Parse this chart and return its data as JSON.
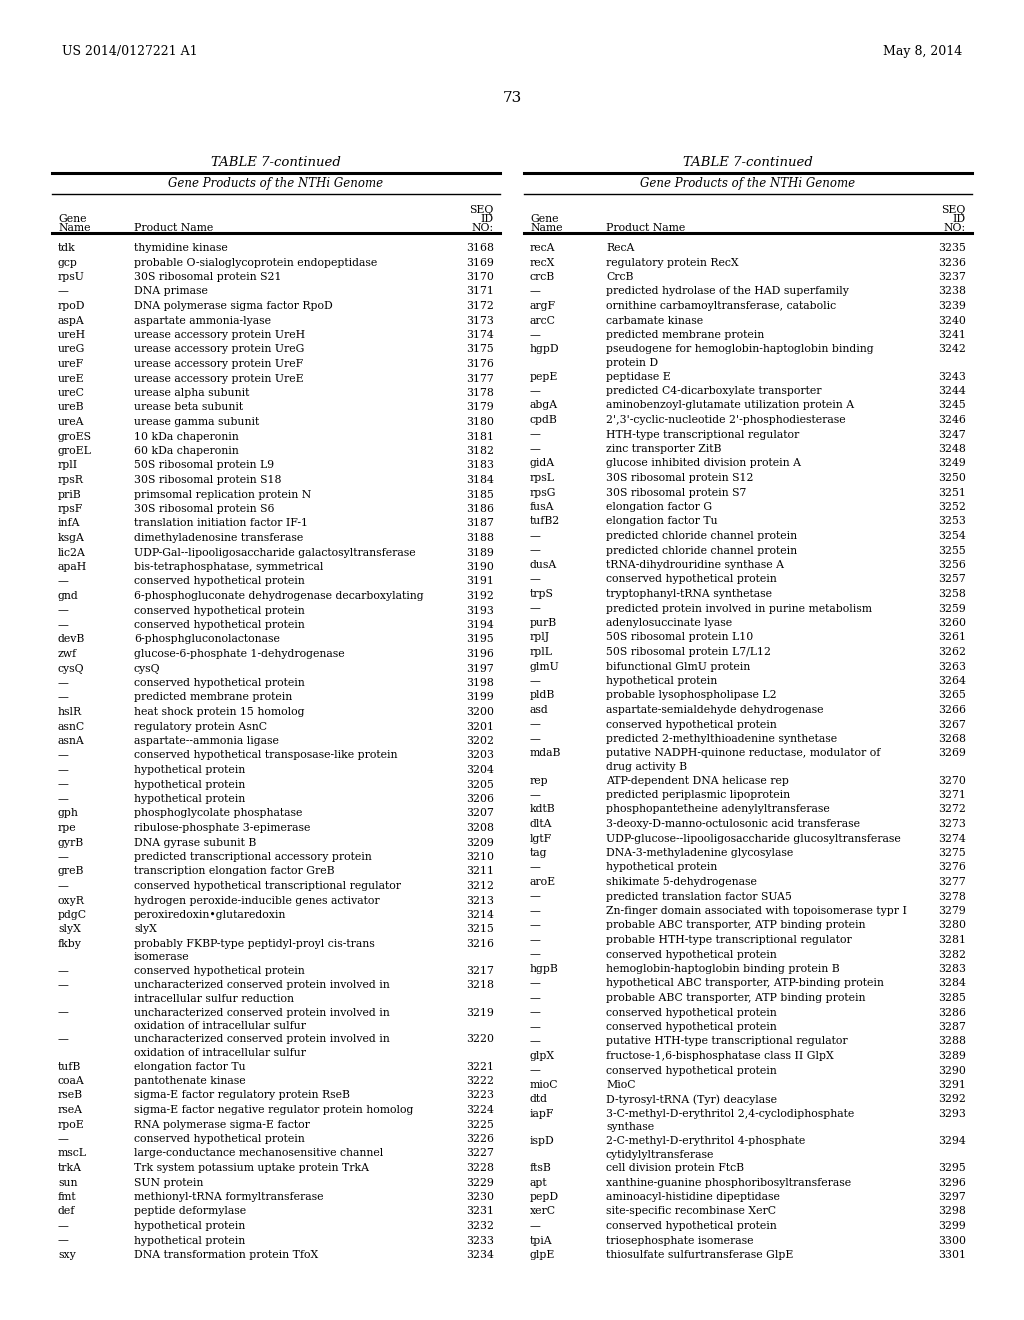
{
  "header_left": "US 2014/0127221 A1",
  "header_right": "May 8, 2014",
  "page_number": "73",
  "table_title": "TABLE 7-continued",
  "table_subtitle": "Gene Products of the NTHi Genome",
  "left_table": [
    [
      "tdk",
      "thymidine kinase",
      "3168"
    ],
    [
      "gcp",
      "probable O-sialoglycoprotein endopeptidase",
      "3169"
    ],
    [
      "rpsU",
      "30S ribosomal protein S21",
      "3170"
    ],
    [
      "—",
      "DNA primase",
      "3171"
    ],
    [
      "rpoD",
      "DNA polymerase sigma factor RpoD",
      "3172"
    ],
    [
      "aspA",
      "aspartate ammonia-lyase",
      "3173"
    ],
    [
      "ureH",
      "urease accessory protein UreH",
      "3174"
    ],
    [
      "ureG",
      "urease accessory protein UreG",
      "3175"
    ],
    [
      "ureF",
      "urease accessory protein UreF",
      "3176"
    ],
    [
      "ureE",
      "urease accessory protein UreE",
      "3177"
    ],
    [
      "ureC",
      "urease alpha subunit",
      "3178"
    ],
    [
      "ureB",
      "urease beta subunit",
      "3179"
    ],
    [
      "ureA",
      "urease gamma subunit",
      "3180"
    ],
    [
      "groES",
      "10 kDa chaperonin",
      "3181"
    ],
    [
      "groEL",
      "60 kDa chaperonin",
      "3182"
    ],
    [
      "rplI",
      "50S ribosomal protein L9",
      "3183"
    ],
    [
      "rpsR",
      "30S ribosomal protein S18",
      "3184"
    ],
    [
      "priB",
      "primsomal replication protein N",
      "3185"
    ],
    [
      "rpsF",
      "30S ribosomal protein S6",
      "3186"
    ],
    [
      "infA",
      "translation initiation factor IF-1",
      "3187"
    ],
    [
      "ksgA",
      "dimethyladenosine transferase",
      "3188"
    ],
    [
      "lic2A",
      "UDP-Gal--lipooligosaccharide galactosyltransferase",
      "3189"
    ],
    [
      "apaH",
      "bis-tetraphosphatase, symmetrical",
      "3190"
    ],
    [
      "—",
      "conserved hypothetical protein",
      "3191"
    ],
    [
      "gnd",
      "6-phosphogluconate dehydrogenase decarboxylating",
      "3192"
    ],
    [
      "—",
      "conserved hypothetical protein",
      "3193"
    ],
    [
      "—",
      "conserved hypothetical protein",
      "3194"
    ],
    [
      "devB",
      "6-phosphgluconolactonase",
      "3195"
    ],
    [
      "zwf",
      "glucose-6-phosphate 1-dehydrogenase",
      "3196"
    ],
    [
      "cysQ",
      "cysQ",
      "3197"
    ],
    [
      "—",
      "conserved hypothetical protein",
      "3198"
    ],
    [
      "—",
      "predicted membrane protein",
      "3199"
    ],
    [
      "hslR",
      "heat shock protein 15 homolog",
      "3200"
    ],
    [
      "asnC",
      "regulatory protein AsnC",
      "3201"
    ],
    [
      "asnA",
      "aspartate--ammonia ligase",
      "3202"
    ],
    [
      "—",
      "conserved hypothetical transposase-like protein",
      "3203"
    ],
    [
      "—",
      "hypothetical protein",
      "3204"
    ],
    [
      "—",
      "hypothetical protein",
      "3205"
    ],
    [
      "—",
      "hypothetical protein",
      "3206"
    ],
    [
      "gph",
      "phosphoglycolate phosphatase",
      "3207"
    ],
    [
      "rpe",
      "ribulose-phosphate 3-epimerase",
      "3208"
    ],
    [
      "gyrB",
      "DNA gyrase subunit B",
      "3209"
    ],
    [
      "—",
      "predicted transcriptional accessory protein",
      "3210"
    ],
    [
      "greB",
      "transcription elongation factor GreB",
      "3211"
    ],
    [
      "—",
      "conserved hypothetical transcriptional regulator",
      "3212"
    ],
    [
      "oxyR",
      "hydrogen peroxide-inducible genes activator",
      "3213"
    ],
    [
      "pdgC",
      "peroxiredoxin•glutaredoxin",
      "3214"
    ],
    [
      "slyX",
      "slyX",
      "3215"
    ],
    [
      "fkby",
      "probably FKBP-type peptidyl-proyl cis-trans|isomerase",
      "3216"
    ],
    [
      "—",
      "conserved hypothetical protein",
      "3217"
    ],
    [
      "—",
      "uncharacterized conserved protein involved in|intracellular sulfur reduction",
      "3218"
    ],
    [
      "—",
      "uncharacterized conserved protein involved in|oxidation of intracellular sulfur",
      "3219"
    ],
    [
      "—",
      "uncharacterized conserved protein involved in|oxidation of intracellular sulfur",
      "3220"
    ],
    [
      "tufB",
      "elongation factor Tu",
      "3221"
    ],
    [
      "coaA",
      "pantothenate kinase",
      "3222"
    ],
    [
      "rseB",
      "sigma-E factor regulatory protein RseB",
      "3223"
    ],
    [
      "rseA",
      "sigma-E factor negative regulator protein homolog",
      "3224"
    ],
    [
      "rpoE",
      "RNA polymerase sigma-E factor",
      "3225"
    ],
    [
      "—",
      "conserved hypothetical protein",
      "3226"
    ],
    [
      "mscL",
      "large-conductance mechanosensitive channel",
      "3227"
    ],
    [
      "trkA",
      "Trk system potassium uptake protein TrkA",
      "3228"
    ],
    [
      "sun",
      "SUN protein",
      "3229"
    ],
    [
      "fmt",
      "methionyl-tRNA formyltransferase",
      "3230"
    ],
    [
      "def",
      "peptide deformylase",
      "3231"
    ],
    [
      "—",
      "hypothetical protein",
      "3232"
    ],
    [
      "—",
      "hypothetical protein",
      "3233"
    ],
    [
      "sxy",
      "DNA transformation protein TfoX",
      "3234"
    ]
  ],
  "right_table": [
    [
      "recA",
      "RecA",
      "3235"
    ],
    [
      "recX",
      "regulatory protein RecX",
      "3236"
    ],
    [
      "crcB",
      "CrcB",
      "3237"
    ],
    [
      "—",
      "predicted hydrolase of the HAD superfamily",
      "3238"
    ],
    [
      "argF",
      "ornithine carbamoyltransferase, catabolic",
      "3239"
    ],
    [
      "arcC",
      "carbamate kinase",
      "3240"
    ],
    [
      "—",
      "predicted membrane protein",
      "3241"
    ],
    [
      "hgpD",
      "pseudogene for hemoglobin-haptoglobin binding|protein D",
      "3242"
    ],
    [
      "pepE",
      "peptidase E",
      "3243"
    ],
    [
      "—",
      "predicted C4-dicarboxylate transporter",
      "3244"
    ],
    [
      "abgA",
      "aminobenzoyl-glutamate utilization protein A",
      "3245"
    ],
    [
      "cpdB",
      "2',3'-cyclic-nucleotide 2'-phosphodiesterase",
      "3246"
    ],
    [
      "—",
      "HTH-type transcriptional regulator",
      "3247"
    ],
    [
      "—",
      "zinc transporter ZitB",
      "3248"
    ],
    [
      "gidA",
      "glucose inhibited division protein A",
      "3249"
    ],
    [
      "rpsL",
      "30S ribosomal protein S12",
      "3250"
    ],
    [
      "rpsG",
      "30S ribosomal protein S7",
      "3251"
    ],
    [
      "fusA",
      "elongation factor G",
      "3252"
    ],
    [
      "tufB2",
      "elongation factor Tu",
      "3253"
    ],
    [
      "—",
      "predicted chloride channel protein",
      "3254"
    ],
    [
      "—",
      "predicted chloride channel protein",
      "3255"
    ],
    [
      "dusA",
      "tRNA-dihydrouridine synthase A",
      "3256"
    ],
    [
      "—",
      "conserved hypothetical protein",
      "3257"
    ],
    [
      "trpS",
      "tryptophanyl-tRNA synthetase",
      "3258"
    ],
    [
      "—",
      "predicted protein involved in purine metabolism",
      "3259"
    ],
    [
      "purB",
      "adenylosuccinate lyase",
      "3260"
    ],
    [
      "rplJ",
      "50S ribosomal protein L10",
      "3261"
    ],
    [
      "rplL",
      "50S ribosomal protein L7/L12",
      "3262"
    ],
    [
      "glmU",
      "bifunctional GlmU protein",
      "3263"
    ],
    [
      "—",
      "hypothetical protein",
      "3264"
    ],
    [
      "pldB",
      "probable lysophospholipase L2",
      "3265"
    ],
    [
      "asd",
      "aspartate-semialdehyde dehydrogenase",
      "3266"
    ],
    [
      "—",
      "conserved hypothetical protein",
      "3267"
    ],
    [
      "—",
      "predicted 2-methylthioadenine synthetase",
      "3268"
    ],
    [
      "mdaB",
      "putative NADPH-quinone reductase, modulator of|drug activity B",
      "3269"
    ],
    [
      "rep",
      "ATP-dependent DNA helicase rep",
      "3270"
    ],
    [
      "—",
      "predicted periplasmic lipoprotein",
      "3271"
    ],
    [
      "kdtB",
      "phosphopantetheine adenylyltransferase",
      "3272"
    ],
    [
      "dltA",
      "3-deoxy-D-manno-octulosonic acid transferase",
      "3273"
    ],
    [
      "lgtF",
      "UDP-glucose--lipooligosaccharide glucosyltransferase",
      "3274"
    ],
    [
      "tag",
      "DNA-3-methyladenine glycosylase",
      "3275"
    ],
    [
      "—",
      "hypothetical protein",
      "3276"
    ],
    [
      "aroE",
      "shikimate 5-dehydrogenase",
      "3277"
    ],
    [
      "—",
      "predicted translation factor SUA5",
      "3278"
    ],
    [
      "—",
      "Zn-finger domain associated with topoisomerase typr I",
      "3279"
    ],
    [
      "—",
      "probable ABC transporter, ATP binding protein",
      "3280"
    ],
    [
      "—",
      "probable HTH-type transcriptional regulator",
      "3281"
    ],
    [
      "—",
      "conserved hypothetical protein",
      "3282"
    ],
    [
      "hgpB",
      "hemoglobin-haptoglobin binding protein B",
      "3283"
    ],
    [
      "—",
      "hypothetical ABC transporter, ATP-binding protein",
      "3284"
    ],
    [
      "—",
      "probable ABC transporter, ATP binding protein",
      "3285"
    ],
    [
      "—",
      "conserved hypothetical protein",
      "3286"
    ],
    [
      "—",
      "conserved hypothetical protein",
      "3287"
    ],
    [
      "—",
      "putative HTH-type transcriptional regulator",
      "3288"
    ],
    [
      "glpX",
      "fructose-1,6-bisphosphatase class II GlpX",
      "3289"
    ],
    [
      "—",
      "conserved hypothetical protein",
      "3290"
    ],
    [
      "mioC",
      "MioC",
      "3291"
    ],
    [
      "dtd",
      "D-tyrosyl-tRNA (Tyr) deacylase",
      "3292"
    ],
    [
      "iapF",
      "3-C-methyl-D-erythritol 2,4-cyclodiphosphate|synthase",
      "3293"
    ],
    [
      "ispD",
      "2-C-methyl-D-erythritol 4-phosphate|cytidylyltransferase",
      "3294"
    ],
    [
      "ftsB",
      "cell division protein FtcB",
      "3295"
    ],
    [
      "apt",
      "xanthine-guanine phosphoribosyltransferase",
      "3296"
    ],
    [
      "pepD",
      "aminoacyl-histidine dipeptidase",
      "3297"
    ],
    [
      "xerC",
      "site-specific recombinase XerC",
      "3298"
    ],
    [
      "—",
      "conserved hypothetical protein",
      "3299"
    ],
    [
      "tpiA",
      "triosephosphate isomerase",
      "3300"
    ],
    [
      "glpE",
      "thiosulfate sulfurtransferase GlpE",
      "3301"
    ]
  ],
  "bg_color": "#ffffff",
  "text_color": "#000000",
  "font_size_header": 8.5,
  "font_size_body": 7.8,
  "font_size_title": 9.5,
  "font_size_subtitle": 8.5,
  "font_size_page": 11,
  "font_size_docheader": 9
}
